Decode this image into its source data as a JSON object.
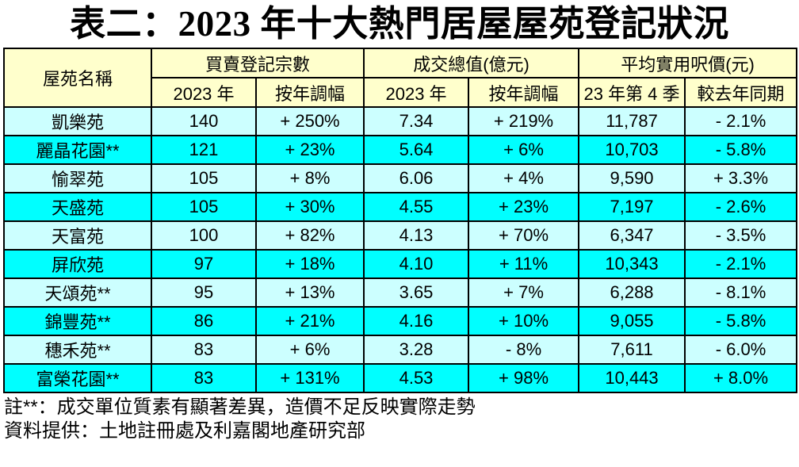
{
  "title": "表二：2023 年十大熱門居屋屋苑登記狀況",
  "colors": {
    "header_bg": "#FFFFCC",
    "row_light": "#CCFFFF",
    "row_bright": "#00FFFF",
    "border": "#000000"
  },
  "table": {
    "name_header": "屋苑名稱",
    "groups": [
      {
        "label": "買賣登記宗數",
        "subs": [
          "2023 年",
          "按年調幅"
        ]
      },
      {
        "label": "成交總值(億元)",
        "subs": [
          "2023 年",
          "按年調幅"
        ]
      },
      {
        "label": "平均實用呎價(元)",
        "subs": [
          "23 年第 4 季",
          "較去年同期"
        ]
      }
    ],
    "rows": [
      {
        "name": "凱樂苑",
        "cells": [
          "140",
          "+ 250%",
          "7.34",
          "+ 219%",
          "11,787",
          "- 2.1%"
        ]
      },
      {
        "name": "麗晶花園**",
        "cells": [
          "121",
          "+ 23%",
          "5.64",
          "+ 6%",
          "10,703",
          "- 5.8%"
        ]
      },
      {
        "name": "愉翠苑",
        "cells": [
          "105",
          "+ 8%",
          "6.06",
          "+ 4%",
          "9,590",
          "+ 3.3%"
        ]
      },
      {
        "name": "天盛苑",
        "cells": [
          "105",
          "+ 30%",
          "4.55",
          "+ 23%",
          "7,197",
          "- 2.6%"
        ]
      },
      {
        "name": "天富苑",
        "cells": [
          "100",
          "+ 82%",
          "4.13",
          "+ 70%",
          "6,347",
          "- 3.5%"
        ]
      },
      {
        "name": "屏欣苑",
        "cells": [
          "97",
          "+ 18%",
          "4.10",
          "+ 11%",
          "10,343",
          "- 2.1%"
        ]
      },
      {
        "name": "天頌苑**",
        "cells": [
          "95",
          "+ 13%",
          "3.65",
          "+ 7%",
          "6,288",
          "- 8.1%"
        ]
      },
      {
        "name": "錦豐苑**",
        "cells": [
          "86",
          "+ 21%",
          "4.16",
          "+ 10%",
          "9,055",
          "- 5.8%"
        ]
      },
      {
        "name": "穗禾苑**",
        "cells": [
          "83",
          "+ 6%",
          "3.28",
          "- 8%",
          "7,611",
          "- 6.0%"
        ]
      },
      {
        "name": "富榮花園**",
        "cells": [
          "83",
          "+ 131%",
          "4.53",
          "+ 98%",
          "10,443",
          "+ 8.0%"
        ]
      }
    ]
  },
  "notes": [
    "註**：成交單位質素有顯著差異，造價不足反映實際走勢",
    "資料提供：土地註冊處及利嘉閣地產研究部"
  ],
  "chart_data": {
    "type": "table",
    "title": "表二：2023 年十大熱門居屋屋苑登記狀況",
    "columns": [
      "屋苑名稱",
      "買賣登記宗數 2023年",
      "買賣登記宗數 按年調幅",
      "成交總值(億元) 2023年",
      "成交總值(億元) 按年調幅",
      "平均實用呎價(元) 23年第4季",
      "平均實用呎價(元) 較去年同期"
    ],
    "rows": [
      [
        "凱樂苑",
        140,
        "+250%",
        7.34,
        "+219%",
        11787,
        "-2.1%"
      ],
      [
        "麗晶花園**",
        121,
        "+23%",
        5.64,
        "+6%",
        10703,
        "-5.8%"
      ],
      [
        "愉翠苑",
        105,
        "+8%",
        6.06,
        "+4%",
        9590,
        "+3.3%"
      ],
      [
        "天盛苑",
        105,
        "+30%",
        4.55,
        "+23%",
        7197,
        "-2.6%"
      ],
      [
        "天富苑",
        100,
        "+82%",
        4.13,
        "+70%",
        6347,
        "-3.5%"
      ],
      [
        "屏欣苑",
        97,
        "+18%",
        4.1,
        "+11%",
        10343,
        "-2.1%"
      ],
      [
        "天頌苑**",
        95,
        "+13%",
        3.65,
        "+7%",
        6288,
        "-8.1%"
      ],
      [
        "錦豐苑**",
        86,
        "+21%",
        4.16,
        "+10%",
        9055,
        "-5.8%"
      ],
      [
        "穗禾苑**",
        83,
        "+6%",
        3.28,
        "-8%",
        7611,
        "-6.0%"
      ],
      [
        "富榮花園**",
        83,
        "+131%",
        4.53,
        "+98%",
        10443,
        "+8.0%"
      ]
    ]
  }
}
